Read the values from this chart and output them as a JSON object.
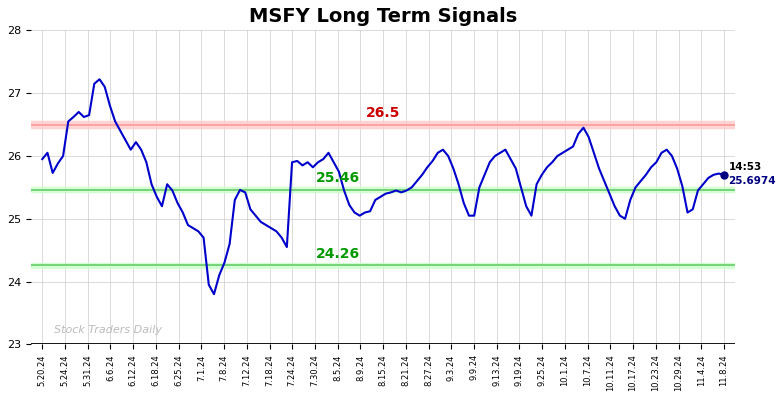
{
  "title": "MSFY Long Term Signals",
  "title_fontsize": 14,
  "title_fontweight": "bold",
  "ylim": [
    23,
    28
  ],
  "yticks": [
    23,
    24,
    25,
    26,
    27,
    28
  ],
  "line_color": "#0000CC",
  "line_width": 1.5,
  "red_hline": 26.5,
  "green_hline_upper": 25.46,
  "green_hline_lower": 24.26,
  "red_line_color": "#cc0000",
  "green_line_color": "#009900",
  "annotation_red": "26.5",
  "annotation_green_upper": "25.46",
  "annotation_green_lower": "24.26",
  "annotation_time": "14:53",
  "annotation_price": "25.6974",
  "watermark": "Stock Traders Daily",
  "background_color": "#ffffff",
  "grid_color": "#cccccc",
  "xtick_labels": [
    "5.20.24",
    "5.24.24",
    "5.31.24",
    "6.6.24",
    "6.12.24",
    "6.18.24",
    "6.25.24",
    "7.1.24",
    "7.8.24",
    "7.12.24",
    "7.18.24",
    "7.24.24",
    "7.30.24",
    "8.5.24",
    "8.9.24",
    "8.15.24",
    "8.21.24",
    "8.27.24",
    "9.3.24",
    "9.9.24",
    "9.13.24",
    "9.19.24",
    "9.25.24",
    "10.1.24",
    "10.7.24",
    "10.11.24",
    "10.17.24",
    "10.23.24",
    "10.29.24",
    "11.4.24",
    "11.8.24"
  ],
  "prices": [
    25.95,
    26.05,
    25.73,
    25.88,
    26.0,
    26.55,
    26.62,
    26.7,
    26.62,
    26.65,
    27.15,
    27.22,
    27.1,
    26.8,
    26.55,
    26.4,
    26.25,
    26.1,
    26.22,
    26.1,
    25.9,
    25.55,
    25.35,
    25.2,
    25.55,
    25.45,
    25.25,
    25.1,
    24.9,
    24.85,
    24.8,
    24.7,
    23.95,
    23.8,
    24.1,
    24.3,
    24.6,
    25.3,
    25.46,
    25.42,
    25.15,
    25.05,
    24.95,
    24.9,
    24.85,
    24.8,
    24.7,
    24.55,
    25.9,
    25.92,
    25.85,
    25.9,
    25.82,
    25.9,
    25.95,
    26.05,
    25.9,
    25.75,
    25.45,
    25.22,
    25.1,
    25.05,
    25.1,
    25.12,
    25.3,
    25.35,
    25.4,
    25.42,
    25.45,
    25.42,
    25.45,
    25.5,
    25.6,
    25.7,
    25.82,
    25.92,
    26.05,
    26.1,
    26.0,
    25.8,
    25.55,
    25.25,
    25.05,
    25.05,
    25.5,
    25.7,
    25.9,
    26.0,
    26.05,
    26.1,
    25.95,
    25.8,
    25.5,
    25.2,
    25.05,
    25.55,
    25.7,
    25.82,
    25.9,
    26.0,
    26.05,
    26.1,
    26.15,
    26.35,
    26.45,
    26.3,
    26.05,
    25.8,
    25.6,
    25.4,
    25.2,
    25.05,
    25.0,
    25.3,
    25.5,
    25.6,
    25.7,
    25.82,
    25.9,
    26.05,
    26.1,
    26.0,
    25.8,
    25.52,
    25.1,
    25.15,
    25.45,
    25.55,
    25.65,
    25.7,
    25.72,
    25.6974
  ],
  "dot_color": "#000080",
  "dot_size": 5
}
